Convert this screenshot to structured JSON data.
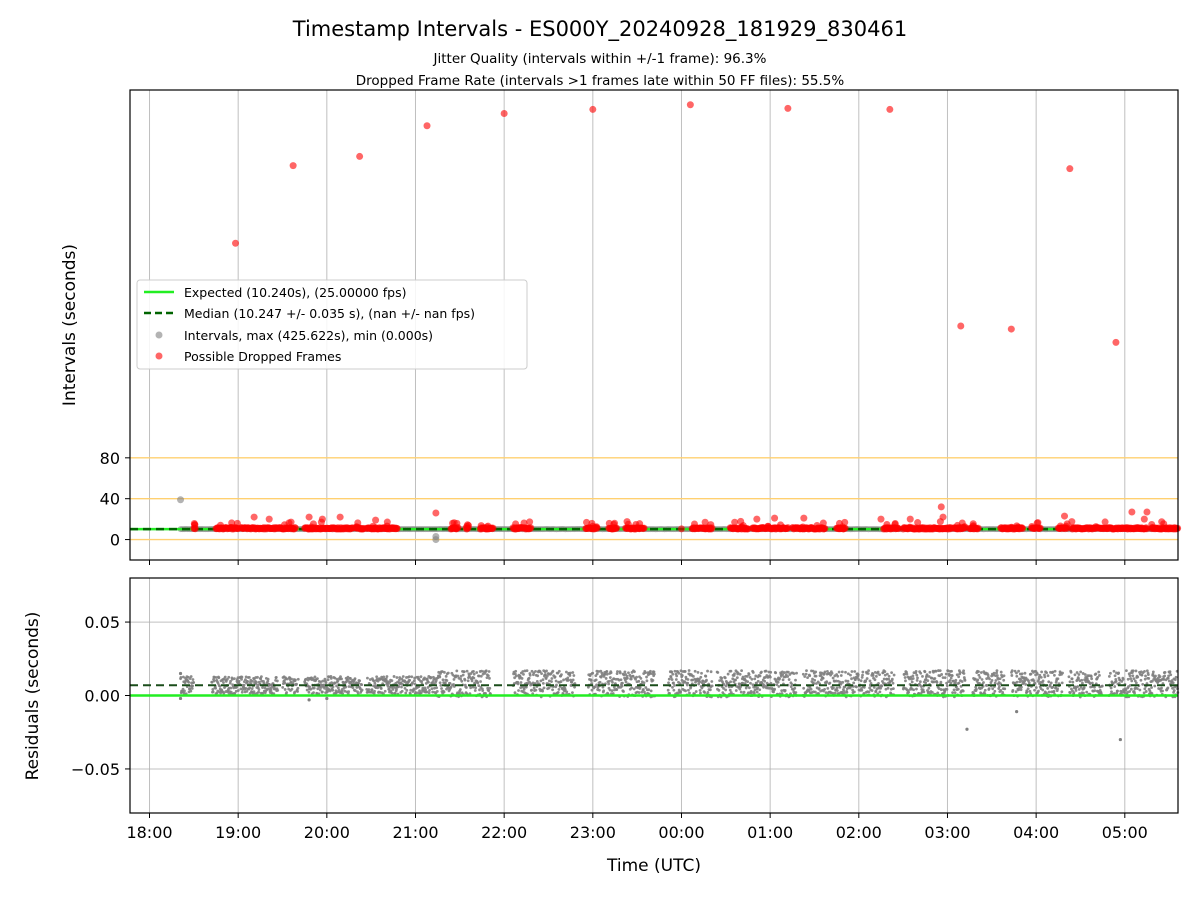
{
  "chart_data": {
    "title": "Timestamp Intervals - ES000Y_20240928_181929_830461",
    "subtitle_1": "Jitter Quality (intervals within +/-1 frame): 96.3%",
    "subtitle_2": "Dropped Frame Rate (intervals >1 frames late within 50 FF files): 55.5%",
    "xlabel": "Time (UTC)",
    "x_ticks": [
      "18:00",
      "19:00",
      "20:00",
      "21:00",
      "22:00",
      "23:00",
      "00:00",
      "01:00",
      "02:00",
      "03:00",
      "04:00",
      "05:00"
    ],
    "x_range_hours": [
      17.78,
      29.6
    ],
    "top_panel": {
      "type": "scatter",
      "ylabel": "Intervals (seconds)",
      "y_ticks": [
        0,
        40,
        80
      ],
      "y_range": [
        -20,
        440
      ],
      "orange_lines": [
        0,
        40,
        80
      ],
      "grid": "vertical",
      "legend_position": "center-left",
      "legend": [
        "Expected (10.240s), (25.00000 fps)",
        "Median (10.247 +/- 0.035 s), (nan +/- nan fps)",
        "Intervals, max (425.622s), min (0.000s)",
        "Possible Dropped Frames"
      ],
      "expected_value": 10.24,
      "median_value": 10.247,
      "series": [
        {
          "name": "Possible Dropped Frames",
          "color": "#ff0000",
          "points": [
            [
              18.97,
              290
            ],
            [
              19.62,
              366
            ],
            [
              20.37,
              375
            ],
            [
              21.13,
              405
            ],
            [
              22.0,
              417
            ],
            [
              23.0,
              421
            ],
            [
              24.1,
              425.6
            ],
            [
              25.2,
              422
            ],
            [
              26.35,
              421
            ],
            [
              27.15,
              209
            ],
            [
              27.72,
              206
            ],
            [
              28.38,
              363
            ],
            [
              28.9,
              193
            ],
            [
              19.18,
              22
            ],
            [
              19.35,
              20
            ],
            [
              19.8,
              22
            ],
            [
              19.95,
              20
            ],
            [
              20.15,
              22
            ],
            [
              20.55,
              19
            ],
            [
              21.23,
              26
            ],
            [
              23.0,
              13
            ],
            [
              23.4,
              15
            ],
            [
              24.0,
              10.5
            ],
            [
              24.6,
              17
            ],
            [
              24.85,
              20
            ],
            [
              25.05,
              21
            ],
            [
              25.38,
              21
            ],
            [
              26.25,
              20
            ],
            [
              26.58,
              20
            ],
            [
              26.93,
              32
            ],
            [
              26.95,
              22
            ],
            [
              27.12,
              10.5
            ],
            [
              28.32,
              23
            ],
            [
              29.08,
              27
            ],
            [
              29.25,
              27
            ],
            [
              29.22,
              20
            ]
          ]
        },
        {
          "name": "Intervals, max (425.622s), min (0.000s)",
          "color": "#808080",
          "points": [
            [
              18.35,
              39
            ],
            [
              21.23,
              3
            ],
            [
              21.23,
              0
            ]
          ]
        }
      ],
      "dropped_frame_runs": [
        [
          18.5,
          18.52
        ],
        [
          18.75,
          19.0
        ],
        [
          19.03,
          19.65
        ],
        [
          19.75,
          20.3
        ],
        [
          20.33,
          20.42
        ],
        [
          20.45,
          20.8
        ],
        [
          21.4,
          21.48
        ],
        [
          21.57,
          21.6
        ],
        [
          21.73,
          21.88
        ],
        [
          22.1,
          22.3
        ],
        [
          22.92,
          23.05
        ],
        [
          23.18,
          23.27
        ],
        [
          23.37,
          23.58
        ],
        [
          24.12,
          24.35
        ],
        [
          24.55,
          24.75
        ],
        [
          24.8,
          25.2
        ],
        [
          25.25,
          25.62
        ],
        [
          25.75,
          25.85
        ],
        [
          26.28,
          26.45
        ],
        [
          26.5,
          27.05
        ],
        [
          27.07,
          27.2
        ],
        [
          27.25,
          27.35
        ],
        [
          27.6,
          27.85
        ],
        [
          27.95,
          28.05
        ],
        [
          28.25,
          28.35
        ],
        [
          28.4,
          29.25
        ],
        [
          29.3,
          29.6
        ]
      ]
    },
    "bottom_panel": {
      "type": "scatter",
      "ylabel": "Residuals (seconds)",
      "y_ticks": [
        "0.05",
        "0.00",
        "−0.05"
      ],
      "y_tick_values": [
        0.05,
        0.0,
        -0.05
      ],
      "y_range": [
        -0.08,
        0.08
      ],
      "grid": "both",
      "expected_residual": 0.0,
      "median_residual": 0.007,
      "outliers": [
        [
          18.35,
          0.015
        ],
        [
          18.35,
          -0.002
        ],
        [
          19.8,
          -0.003
        ],
        [
          20.0,
          -0.002
        ],
        [
          27.22,
          -0.023
        ],
        [
          27.78,
          -0.011
        ],
        [
          28.95,
          -0.03
        ]
      ],
      "segments": [
        {
          "range": [
            18.35,
            21.25
          ],
          "mean": 0.007,
          "spread": 0.006
        },
        {
          "range": [
            21.25,
            29.6
          ],
          "mean": 0.008,
          "spread": 0.009
        }
      ],
      "gaps": [
        [
          18.5,
          18.7
        ],
        [
          19.45,
          19.5
        ],
        [
          19.68,
          19.75
        ],
        [
          20.4,
          20.45
        ],
        [
          21.85,
          22.1
        ],
        [
          22.8,
          22.95
        ],
        [
          23.7,
          23.85
        ],
        [
          24.35,
          24.4
        ],
        [
          25.3,
          25.37
        ],
        [
          26.4,
          26.5
        ],
        [
          27.2,
          27.28
        ],
        [
          27.65,
          27.72
        ],
        [
          28.3,
          28.37
        ],
        [
          28.75,
          28.82
        ]
      ],
      "series_color": "#808080"
    },
    "colors": {
      "expected": "#22ee22",
      "median": "#006400",
      "dropped": "#ff0000",
      "intervals": "#808080",
      "orange_line": "#ffd070",
      "grid": "#b0b0b0"
    }
  }
}
